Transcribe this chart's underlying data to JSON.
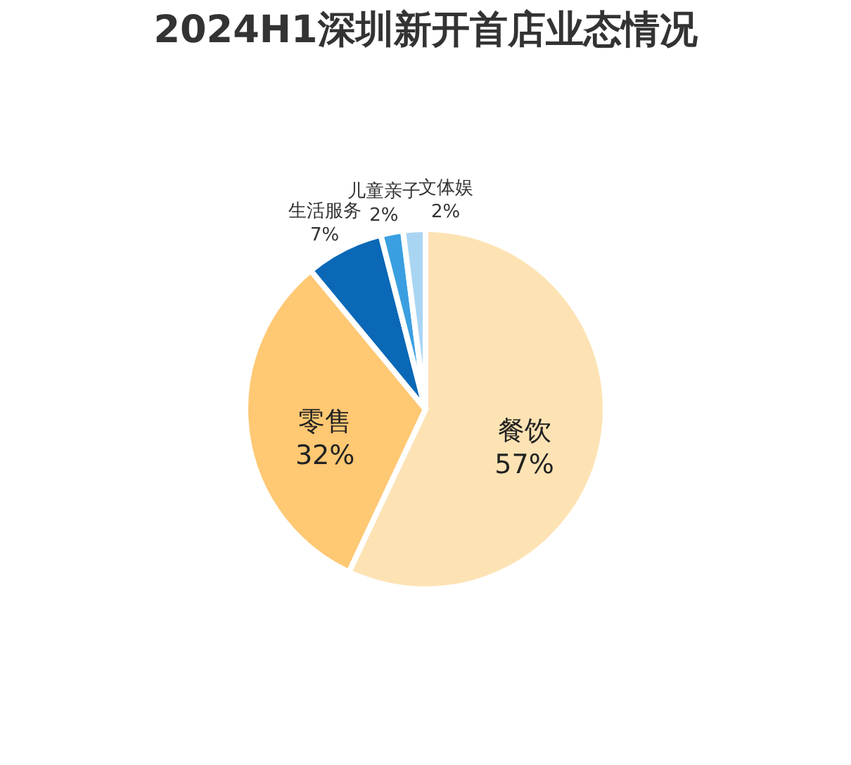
{
  "chart_data": {
    "type": "pie",
    "title": "2024H1深圳新开首店业态情况",
    "categories": [
      "餐饮",
      "零售",
      "生活服务",
      "儿童亲子",
      "文体娱"
    ],
    "values": [
      57,
      32,
      7,
      2,
      2
    ],
    "value_labels": [
      "57%",
      "32%",
      "7%",
      "2%",
      "2%"
    ],
    "colors": [
      "#fde3b4",
      "#ffc873",
      "#0a68b6",
      "#3a9fe0",
      "#a9d5f3"
    ]
  }
}
